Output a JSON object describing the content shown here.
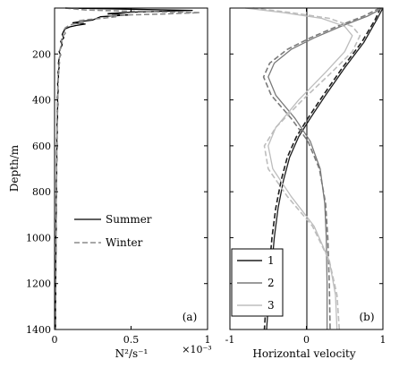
{
  "chart_data": [
    {
      "type": "line",
      "panel_label": "(a)",
      "ylabel": "Depth/m",
      "xlabel": "N²/s⁻¹",
      "x_multiplier": "×10⁻³",
      "xlim": [
        0,
        1
      ],
      "ylim": [
        1400,
        0
      ],
      "x_ticks": [
        0,
        0.5,
        1
      ],
      "x_tick_labels": [
        "0",
        "0.5",
        "1"
      ],
      "y_ticks": [
        200,
        400,
        600,
        800,
        1000,
        1200,
        1400
      ],
      "y_tick_labels": [
        "200",
        "400",
        "600",
        "800",
        "1000",
        "1200",
        "1400"
      ],
      "legend_position": "center-left",
      "grid": false,
      "series": [
        {
          "name": "Summer",
          "color": "#000000",
          "style": "solid",
          "points": [
            [
              0.07,
              0
            ],
            [
              0.5,
              5
            ],
            [
              0.9,
              10
            ],
            [
              0.5,
              18
            ],
            [
              0.35,
              24
            ],
            [
              0.48,
              30
            ],
            [
              0.3,
              38
            ],
            [
              0.27,
              46
            ],
            [
              0.25,
              52
            ],
            [
              0.18,
              58
            ],
            [
              0.12,
              64
            ],
            [
              0.2,
              70
            ],
            [
              0.14,
              76
            ],
            [
              0.1,
              82
            ],
            [
              0.07,
              90
            ],
            [
              0.06,
              100
            ],
            [
              0.05,
              115
            ],
            [
              0.06,
              130
            ],
            [
              0.04,
              145
            ],
            [
              0.05,
              160
            ],
            [
              0.04,
              175
            ],
            [
              0.03,
              190
            ],
            [
              0.04,
              205
            ],
            [
              0.03,
              220
            ],
            [
              0.025,
              240
            ],
            [
              0.03,
              260
            ],
            [
              0.022,
              280
            ],
            [
              0.026,
              300
            ],
            [
              0.02,
              330
            ],
            [
              0.024,
              360
            ],
            [
              0.018,
              390
            ],
            [
              0.022,
              420
            ],
            [
              0.017,
              450
            ],
            [
              0.02,
              480
            ],
            [
              0.015,
              510
            ],
            [
              0.018,
              540
            ],
            [
              0.014,
              570
            ],
            [
              0.017,
              600
            ],
            [
              0.013,
              630
            ],
            [
              0.016,
              660
            ],
            [
              0.012,
              690
            ],
            [
              0.014,
              720
            ],
            [
              0.011,
              760
            ],
            [
              0.013,
              800
            ],
            [
              0.01,
              840
            ],
            [
              0.012,
              880
            ],
            [
              0.009,
              920
            ],
            [
              0.011,
              960
            ],
            [
              0.008,
              1000
            ],
            [
              0.01,
              1050
            ],
            [
              0.008,
              1100
            ],
            [
              0.009,
              1150
            ],
            [
              0.007,
              1200
            ],
            [
              0.008,
              1250
            ],
            [
              0.006,
              1300
            ],
            [
              0.007,
              1350
            ],
            [
              0.006,
              1400
            ]
          ]
        },
        {
          "name": "Winter",
          "color": "#8c8c8c",
          "style": "dashed",
          "points": [
            [
              0.07,
              0
            ],
            [
              0.2,
              8
            ],
            [
              0.5,
              14
            ],
            [
              0.95,
              20
            ],
            [
              0.7,
              26
            ],
            [
              0.35,
              32
            ],
            [
              0.4,
              38
            ],
            [
              0.32,
              44
            ],
            [
              0.22,
              50
            ],
            [
              0.15,
              56
            ],
            [
              0.2,
              62
            ],
            [
              0.12,
              70
            ],
            [
              0.09,
              78
            ],
            [
              0.07,
              86
            ],
            [
              0.06,
              95
            ],
            [
              0.07,
              110
            ],
            [
              0.05,
              125
            ],
            [
              0.045,
              140
            ],
            [
              0.05,
              155
            ],
            [
              0.04,
              170
            ],
            [
              0.035,
              185
            ],
            [
              0.04,
              200
            ],
            [
              0.03,
              220
            ],
            [
              0.032,
              240
            ],
            [
              0.026,
              260
            ],
            [
              0.028,
              280
            ],
            [
              0.022,
              300
            ],
            [
              0.025,
              330
            ],
            [
              0.02,
              360
            ],
            [
              0.022,
              390
            ],
            [
              0.018,
              420
            ],
            [
              0.02,
              450
            ],
            [
              0.016,
              480
            ],
            [
              0.018,
              510
            ],
            [
              0.015,
              540
            ],
            [
              0.017,
              570
            ],
            [
              0.013,
              600
            ],
            [
              0.015,
              640
            ],
            [
              0.012,
              680
            ],
            [
              0.014,
              720
            ],
            [
              0.011,
              760
            ],
            [
              0.013,
              800
            ],
            [
              0.01,
              850
            ],
            [
              0.012,
              900
            ],
            [
              0.009,
              950
            ],
            [
              0.01,
              1000
            ],
            [
              0.008,
              1050
            ],
            [
              0.009,
              1100
            ],
            [
              0.007,
              1150
            ],
            [
              0.008,
              1200
            ],
            [
              0.007,
              1250
            ],
            [
              0.006,
              1300
            ],
            [
              0.007,
              1350
            ],
            [
              0.006,
              1400
            ]
          ]
        }
      ]
    },
    {
      "type": "line",
      "panel_label": "(b)",
      "xlabel": "Horizontal velocity",
      "xlim": [
        -1,
        1
      ],
      "ylim": [
        1400,
        0
      ],
      "x_ticks": [
        -1,
        0,
        1
      ],
      "x_tick_labels": [
        "-1",
        "0",
        "1"
      ],
      "y_ticks": [
        200,
        400,
        600,
        800,
        1000,
        1200,
        1400
      ],
      "legend_position": "bottom-left",
      "grid": false,
      "reference_line_x": 0,
      "series": [
        {
          "name": "1",
          "color": "#1e1e1e",
          "style": "solid",
          "points": [
            [
              1,
              0
            ],
            [
              0.92,
              50
            ],
            [
              0.75,
              150
            ],
            [
              0.5,
              260
            ],
            [
              0.25,
              380
            ],
            [
              0.05,
              480
            ],
            [
              -0.1,
              560
            ],
            [
              -0.22,
              650
            ],
            [
              -0.3,
              750
            ],
            [
              -0.37,
              870
            ],
            [
              -0.42,
              1000
            ],
            [
              -0.46,
              1150
            ],
            [
              -0.5,
              1300
            ],
            [
              -0.52,
              1400
            ]
          ]
        },
        {
          "name": "1",
          "color": "#1e1e1e",
          "style": "dashed",
          "points": [
            [
              0.97,
              0
            ],
            [
              0.9,
              50
            ],
            [
              0.72,
              150
            ],
            [
              0.47,
              260
            ],
            [
              0.22,
              380
            ],
            [
              0.02,
              480
            ],
            [
              -0.13,
              560
            ],
            [
              -0.25,
              650
            ],
            [
              -0.33,
              750
            ],
            [
              -0.4,
              870
            ],
            [
              -0.45,
              1000
            ],
            [
              -0.49,
              1150
            ],
            [
              -0.53,
              1300
            ],
            [
              -0.55,
              1400
            ]
          ]
        },
        {
          "name": "2",
          "color": "#7a7a7a",
          "style": "solid",
          "points": [
            [
              1,
              0
            ],
            [
              0.8,
              35
            ],
            [
              0.45,
              80
            ],
            [
              0.1,
              130
            ],
            [
              -0.2,
              180
            ],
            [
              -0.42,
              240
            ],
            [
              -0.5,
              300
            ],
            [
              -0.4,
              380
            ],
            [
              -0.15,
              480
            ],
            [
              0.05,
              580
            ],
            [
              0.18,
              700
            ],
            [
              0.24,
              850
            ],
            [
              0.26,
              1000
            ],
            [
              0.27,
              1200
            ],
            [
              0.27,
              1400
            ]
          ]
        },
        {
          "name": "2",
          "color": "#7a7a7a",
          "style": "dashed",
          "points": [
            [
              0.96,
              0
            ],
            [
              0.75,
              35
            ],
            [
              0.4,
              80
            ],
            [
              0.05,
              130
            ],
            [
              -0.25,
              180
            ],
            [
              -0.48,
              240
            ],
            [
              -0.56,
              300
            ],
            [
              -0.46,
              380
            ],
            [
              -0.2,
              480
            ],
            [
              0.02,
              580
            ],
            [
              0.17,
              700
            ],
            [
              0.25,
              850
            ],
            [
              0.28,
              1000
            ],
            [
              0.3,
              1200
            ],
            [
              0.31,
              1400
            ]
          ]
        },
        {
          "name": "3",
          "color": "#bdbdbd",
          "style": "solid",
          "points": [
            [
              -0.8,
              0
            ],
            [
              -0.3,
              20
            ],
            [
              0.2,
              45
            ],
            [
              0.5,
              80
            ],
            [
              0.6,
              120
            ],
            [
              0.5,
              190
            ],
            [
              0.25,
              280
            ],
            [
              -0.1,
              400
            ],
            [
              -0.4,
              520
            ],
            [
              -0.5,
              600
            ],
            [
              -0.44,
              700
            ],
            [
              -0.2,
              820
            ],
            [
              0.1,
              950
            ],
            [
              0.3,
              1100
            ],
            [
              0.38,
              1250
            ],
            [
              0.4,
              1400
            ]
          ]
        },
        {
          "name": "3",
          "color": "#bdbdbd",
          "style": "dashed",
          "points": [
            [
              -0.7,
              0
            ],
            [
              -0.2,
              20
            ],
            [
              0.3,
              45
            ],
            [
              0.6,
              80
            ],
            [
              0.7,
              120
            ],
            [
              0.6,
              190
            ],
            [
              0.33,
              280
            ],
            [
              -0.05,
              400
            ],
            [
              -0.4,
              520
            ],
            [
              -0.55,
              600
            ],
            [
              -0.5,
              700
            ],
            [
              -0.25,
              820
            ],
            [
              0.08,
              950
            ],
            [
              0.3,
              1100
            ],
            [
              0.4,
              1250
            ],
            [
              0.43,
              1400
            ]
          ]
        }
      ],
      "legend": [
        {
          "label": "1",
          "color": "#1e1e1e"
        },
        {
          "label": "2",
          "color": "#7a7a7a"
        },
        {
          "label": "3",
          "color": "#bdbdbd"
        }
      ]
    }
  ]
}
